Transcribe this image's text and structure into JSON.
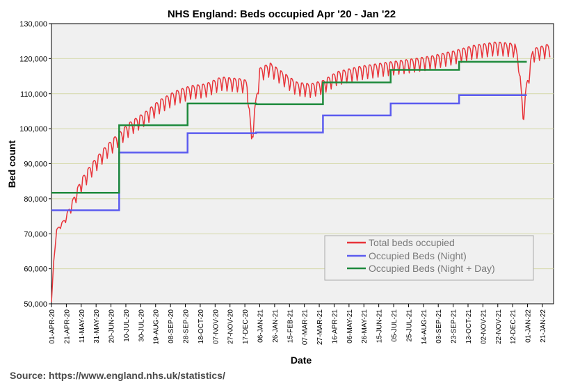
{
  "chart_data": {
    "type": "line",
    "title": "NHS England: Beds occupied Apr '20 - Jan '22",
    "xlabel": "Date",
    "ylabel": "Bed count",
    "source": "Source: https://www.england.nhs.uk/statistics/",
    "ylim": [
      50000,
      130000
    ],
    "yticks": [
      "50,000",
      "60,000",
      "70,000",
      "80,000",
      "90,000",
      "100,000",
      "110,000",
      "120,000",
      "130,000"
    ],
    "x_start": "2020-04-01",
    "x_end": "2022-02-05",
    "xticks": [
      "01-APR-20",
      "21-APR-20",
      "11-MAY-20",
      "31-MAY-20",
      "20-JUN-20",
      "10-JUL-20",
      "30-JUL-20",
      "19-AUG-20",
      "08-SEP-20",
      "28-SEP-20",
      "18-OCT-20",
      "07-NOV-20",
      "27-NOV-20",
      "17-DEC-20",
      "06-JAN-21",
      "26-JAN-21",
      "15-FEB-21",
      "07-MAR-21",
      "27-MAR-21",
      "16-APR-21",
      "06-MAY-21",
      "26-MAY-21",
      "15-JUN-21",
      "05-JUL-21",
      "25-JUL-21",
      "14-AUG-21",
      "03-SEP-21",
      "23-SEP-21",
      "13-OCT-21",
      "02-NOV-21",
      "22-NOV-21",
      "12-DEC-21",
      "01-JAN-22",
      "21-JAN-22"
    ],
    "series": [
      {
        "name": "Total beds occupied",
        "color": "#e8343a",
        "weekly_pattern": true,
        "points": [
          {
            "x": "2020-04-01",
            "y": 50500
          },
          {
            "x": "2020-04-04",
            "y": 62000
          },
          {
            "x": "2020-04-08",
            "y": 71000
          },
          {
            "x": "2020-04-18",
            "y": 73500
          },
          {
            "x": "2020-04-28",
            "y": 78000
          },
          {
            "x": "2020-05-10",
            "y": 84000
          },
          {
            "x": "2020-05-24",
            "y": 88500
          },
          {
            "x": "2020-06-10",
            "y": 93000
          },
          {
            "x": "2020-06-28",
            "y": 97000
          },
          {
            "x": "2020-07-15",
            "y": 100500
          },
          {
            "x": "2020-08-05",
            "y": 103500
          },
          {
            "x": "2020-08-25",
            "y": 107000
          },
          {
            "x": "2020-09-15",
            "y": 109500
          },
          {
            "x": "2020-10-05",
            "y": 111000
          },
          {
            "x": "2020-10-25",
            "y": 111500
          },
          {
            "x": "2020-11-15",
            "y": 113500
          },
          {
            "x": "2020-12-10",
            "y": 113000
          },
          {
            "x": "2020-12-20",
            "y": 112500
          },
          {
            "x": "2020-12-26",
            "y": 96500
          },
          {
            "x": "2020-12-30",
            "y": 104000
          },
          {
            "x": "2021-01-06",
            "y": 116000
          },
          {
            "x": "2021-01-20",
            "y": 117500
          },
          {
            "x": "2021-02-05",
            "y": 115000
          },
          {
            "x": "2021-02-25",
            "y": 112000
          },
          {
            "x": "2021-03-15",
            "y": 111500
          },
          {
            "x": "2021-04-01",
            "y": 112500
          },
          {
            "x": "2021-04-20",
            "y": 115000
          },
          {
            "x": "2021-05-20",
            "y": 116500
          },
          {
            "x": "2021-06-20",
            "y": 117500
          },
          {
            "x": "2021-07-25",
            "y": 118500
          },
          {
            "x": "2021-08-25",
            "y": 119500
          },
          {
            "x": "2021-09-25",
            "y": 121000
          },
          {
            "x": "2021-10-20",
            "y": 122500
          },
          {
            "x": "2021-11-20",
            "y": 123500
          },
          {
            "x": "2021-12-15",
            "y": 123000
          },
          {
            "x": "2021-12-20",
            "y": 119000
          },
          {
            "x": "2021-12-26",
            "y": 103500
          },
          {
            "x": "2021-12-31",
            "y": 112000
          },
          {
            "x": "2022-01-08",
            "y": 121500
          },
          {
            "x": "2022-01-31",
            "y": 123000
          }
        ]
      },
      {
        "name": "Occupied Beds (Night)",
        "color": "#5b5bef",
        "step": true,
        "points": [
          {
            "x": "2020-04-01",
            "y": 76700
          },
          {
            "x": "2020-07-01",
            "y": 93200
          },
          {
            "x": "2020-10-01",
            "y": 98700
          },
          {
            "x": "2021-01-01",
            "y": 98900
          },
          {
            "x": "2021-04-01",
            "y": 103800
          },
          {
            "x": "2021-07-01",
            "y": 107200
          },
          {
            "x": "2021-10-01",
            "y": 109600
          },
          {
            "x": "2021-12-31",
            "y": 109600
          }
        ]
      },
      {
        "name": "Occupied Beds (Night + Day)",
        "color": "#1e8a3c",
        "step": true,
        "points": [
          {
            "x": "2020-04-01",
            "y": 81700
          },
          {
            "x": "2020-07-01",
            "y": 101000
          },
          {
            "x": "2020-10-01",
            "y": 107200
          },
          {
            "x": "2021-01-01",
            "y": 107000
          },
          {
            "x": "2021-04-01",
            "y": 113200
          },
          {
            "x": "2021-07-01",
            "y": 116800
          },
          {
            "x": "2021-10-01",
            "y": 119100
          },
          {
            "x": "2021-12-31",
            "y": 119100
          }
        ]
      }
    ],
    "legend_position": "bottom-right",
    "gridlines": "horizontal"
  }
}
